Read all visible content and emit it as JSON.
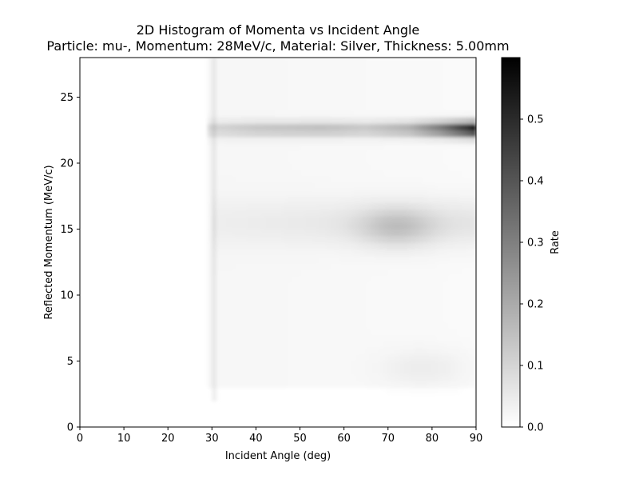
{
  "chart_data": {
    "type": "heatmap",
    "title": "2D Histogram of Momenta vs Incident Angle",
    "subtitle": "Particle: mu-, Momentum: 28MeV/c, Material: Silver, Thickness: 5.00mm",
    "xlabel": "Incident Angle (deg)",
    "ylabel": "Reflected Momentum (MeV/c)",
    "xlim": [
      0,
      90
    ],
    "ylim": [
      0,
      28
    ],
    "x_ticks": [
      0,
      10,
      20,
      30,
      40,
      50,
      60,
      70,
      80,
      90
    ],
    "y_ticks": [
      0,
      5,
      10,
      15,
      20,
      25
    ],
    "colormap": "Greys",
    "colorbar": {
      "label": "Rate",
      "range": [
        0,
        0.6
      ],
      "ticks": [
        0.0,
        0.1,
        0.2,
        0.3,
        0.4,
        0.5
      ],
      "tick_labels": [
        "0.0",
        "0.1",
        "0.2",
        "0.3",
        "0.4",
        "0.5"
      ]
    },
    "grid": false,
    "features": [
      {
        "type": "band",
        "y_center": 22.6,
        "y_width": 0.8,
        "x_start": 29,
        "x_end": 90,
        "values": [
          [
            29,
            0.08
          ],
          [
            40,
            0.12
          ],
          [
            55,
            0.14
          ],
          [
            65,
            0.12
          ],
          [
            75,
            0.18
          ],
          [
            82,
            0.32
          ],
          [
            88,
            0.5
          ],
          [
            90,
            0.6
          ]
        ]
      },
      {
        "type": "blob",
        "x_center": 72,
        "y_center": 15.2,
        "x_width": 12,
        "y_width": 2.0,
        "peak": 0.1
      },
      {
        "type": "band",
        "y_center": 15.5,
        "y_width": 2.5,
        "x_start": 30,
        "x_end": 90,
        "values": [
          [
            30,
            0.02
          ],
          [
            60,
            0.04
          ],
          [
            90,
            0.05
          ]
        ]
      },
      {
        "type": "diffuse",
        "y_range": [
          3,
          28
        ],
        "x_start": 29,
        "x_end": 90,
        "level": 0.02
      },
      {
        "type": "blob",
        "x_center": 78,
        "y_center": 4.5,
        "x_width": 14,
        "y_width": 2.0,
        "peak": 0.03
      },
      {
        "type": "stripe",
        "x_center": 30.3,
        "x_width": 0.6,
        "level": 0.05
      }
    ]
  }
}
